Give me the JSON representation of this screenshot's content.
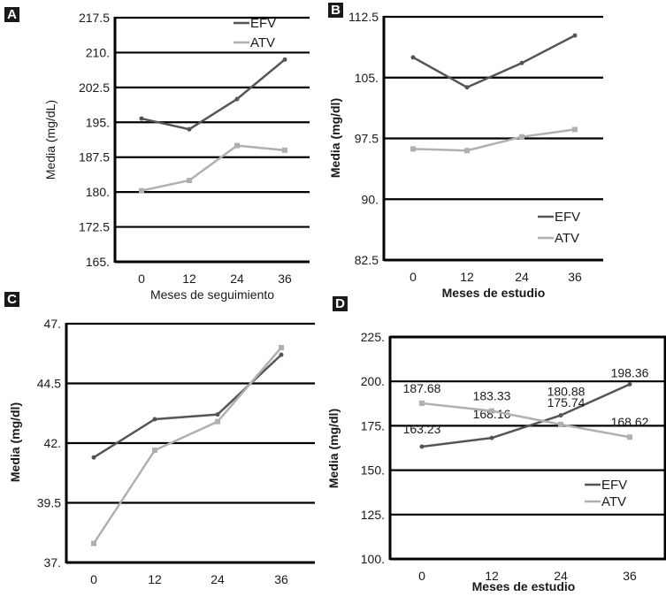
{
  "chart_data": [
    {
      "panel": "A",
      "type": "line",
      "title": "",
      "xlabel": "Meses de seguimiento",
      "ylabel": "Media (mg/dL)",
      "categories": [
        "0",
        "12",
        "24",
        "36"
      ],
      "yticks": [
        "165.",
        "172.5",
        "180.",
        "187.5",
        "195.",
        "202.5",
        "210.",
        "217.5"
      ],
      "ylim": [
        165,
        217.5
      ],
      "grid": true,
      "legend": "top-right",
      "series": [
        {
          "name": "EFV",
          "color": "#555555",
          "values": [
            195.8,
            193.5,
            200.0,
            208.5
          ]
        },
        {
          "name": "ATV",
          "color": "#b0b0b0",
          "values": [
            180.3,
            182.5,
            190.0,
            189.0
          ]
        }
      ]
    },
    {
      "panel": "B",
      "type": "line",
      "title": "",
      "xlabel": "Meses de estudio",
      "ylabel": "Media (mg/dl)",
      "categories": [
        "0",
        "12",
        "24",
        "36"
      ],
      "yticks": [
        "82.5",
        "90.",
        "97.5",
        "105.",
        "112.5"
      ],
      "ylim": [
        82.5,
        112.5
      ],
      "grid": true,
      "legend": "bottom-right",
      "series": [
        {
          "name": "EFV",
          "color": "#555555",
          "values": [
            107.5,
            103.8,
            106.8,
            110.2
          ]
        },
        {
          "name": "ATV",
          "color": "#b0b0b0",
          "values": [
            96.2,
            96.0,
            97.7,
            98.6
          ]
        }
      ]
    },
    {
      "panel": "C",
      "type": "line",
      "title": "",
      "xlabel": "",
      "ylabel": "Media (mg/dl)",
      "categories": [
        "0",
        "12",
        "24",
        "36"
      ],
      "yticks": [
        "37.",
        "39.5",
        "42.",
        "44.5",
        "47."
      ],
      "ylim": [
        37,
        47
      ],
      "grid": true,
      "legend": "none",
      "series": [
        {
          "name": "EFV",
          "color": "#555555",
          "values": [
            41.4,
            43.0,
            43.2,
            45.7
          ]
        },
        {
          "name": "ATV",
          "color": "#b0b0b0",
          "values": [
            37.8,
            41.7,
            42.9,
            46.0
          ]
        }
      ]
    },
    {
      "panel": "D",
      "type": "line",
      "title": "",
      "xlabel": "Meses de estudio",
      "ylabel": "Media (mg/dl)",
      "categories": [
        "0",
        "12",
        "24",
        "36"
      ],
      "yticks": [
        "100.",
        "125.",
        "150.",
        "175.",
        "200.",
        "225."
      ],
      "ylim": [
        100,
        225
      ],
      "grid": true,
      "legend": "center-right",
      "series": [
        {
          "name": "EFV",
          "color": "#555555",
          "values": [
            163.23,
            168.16,
            180.88,
            198.36
          ],
          "labels": [
            "163.23",
            "168.16",
            "180.88",
            "198.36"
          ]
        },
        {
          "name": "ATV",
          "color": "#b0b0b0",
          "values": [
            187.68,
            183.33,
            175.74,
            168.62
          ],
          "labels": [
            "187.68",
            "183.33",
            "175.74",
            "168.62"
          ]
        }
      ]
    }
  ]
}
